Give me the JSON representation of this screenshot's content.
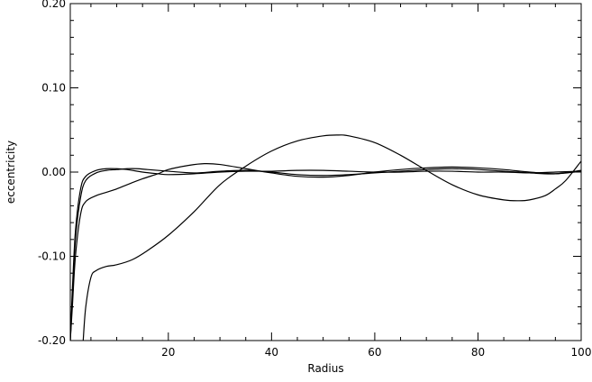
{
  "chart_data": {
    "type": "line",
    "xlabel": "Radius",
    "ylabel": "eccentricity",
    "xlim": [
      1,
      100
    ],
    "ylim": [
      -0.2,
      0.2
    ],
    "x_ticks": [
      20,
      40,
      60,
      80,
      100
    ],
    "x_tick_labels": [
      "20",
      "40",
      "60",
      "80",
      "100"
    ],
    "y_ticks": [
      -0.2,
      -0.1,
      0.0,
      0.1,
      0.2
    ],
    "y_tick_labels": [
      "-0.20",
      "-0.10",
      "0.00",
      "0.10",
      "0.20"
    ],
    "grid": false,
    "line_color": "#000000",
    "series": [
      {
        "x": [
          1,
          1.4,
          2,
          3,
          4,
          6,
          8,
          10,
          12,
          15,
          18,
          20,
          25,
          30,
          35,
          40,
          45,
          50,
          55,
          60,
          65,
          70,
          75,
          80,
          85,
          90,
          95,
          100
        ],
        "y": [
          -0.2,
          -0.14,
          -0.07,
          -0.02,
          -0.005,
          0.002,
          0.004,
          0.004,
          0.003,
          0.0,
          -0.002,
          -0.003,
          -0.002,
          0.0,
          0.001,
          0.001,
          0.002,
          0.002,
          0.001,
          0.0,
          0.0,
          0.001,
          0.001,
          0.0,
          0.0,
          -0.001,
          0.0,
          0.001
        ]
      },
      {
        "x": [
          1,
          1.4,
          2,
          3,
          4,
          6,
          8,
          10,
          12,
          14,
          16,
          20,
          25,
          30,
          35,
          40,
          45,
          50,
          55,
          60,
          65,
          70,
          75,
          80,
          85,
          90,
          95,
          100
        ],
        "y": [
          -0.2,
          -0.15,
          -0.08,
          -0.03,
          -0.01,
          -0.001,
          0.002,
          0.003,
          0.004,
          0.004,
          0.003,
          0.001,
          -0.001,
          0.001,
          0.002,
          0.0,
          -0.003,
          -0.004,
          -0.003,
          -0.001,
          0.001,
          0.003,
          0.004,
          0.003,
          0.001,
          -0.001,
          -0.002,
          0.002
        ]
      },
      {
        "x": [
          1,
          1.4,
          2,
          3,
          4,
          6,
          8,
          10,
          12,
          15,
          18,
          20,
          24,
          27,
          30,
          35,
          40,
          45,
          50,
          55,
          60,
          65,
          70,
          75,
          80,
          85,
          90,
          95,
          100
        ],
        "y": [
          -0.2,
          -0.16,
          -0.1,
          -0.05,
          -0.035,
          -0.028,
          -0.024,
          -0.02,
          -0.015,
          -0.008,
          -0.002,
          0.003,
          0.008,
          0.01,
          0.009,
          0.004,
          -0.001,
          -0.005,
          -0.006,
          -0.004,
          0.0,
          0.003,
          0.005,
          0.006,
          0.005,
          0.003,
          0.0,
          -0.002,
          0.001
        ]
      },
      {
        "x": [
          3.5,
          4,
          5,
          6,
          8,
          10,
          13,
          16,
          20,
          25,
          30,
          35,
          40,
          45,
          50,
          53,
          55,
          60,
          65,
          70,
          75,
          80,
          85,
          88,
          90,
          93,
          95,
          97,
          100
        ],
        "y": [
          -0.2,
          -0.16,
          -0.125,
          -0.117,
          -0.112,
          -0.11,
          -0.104,
          -0.093,
          -0.075,
          -0.047,
          -0.015,
          0.007,
          0.025,
          0.037,
          0.043,
          0.044,
          0.043,
          0.035,
          0.02,
          0.002,
          -0.015,
          -0.027,
          -0.033,
          -0.034,
          -0.033,
          -0.028,
          -0.02,
          -0.01,
          0.013
        ]
      }
    ]
  }
}
